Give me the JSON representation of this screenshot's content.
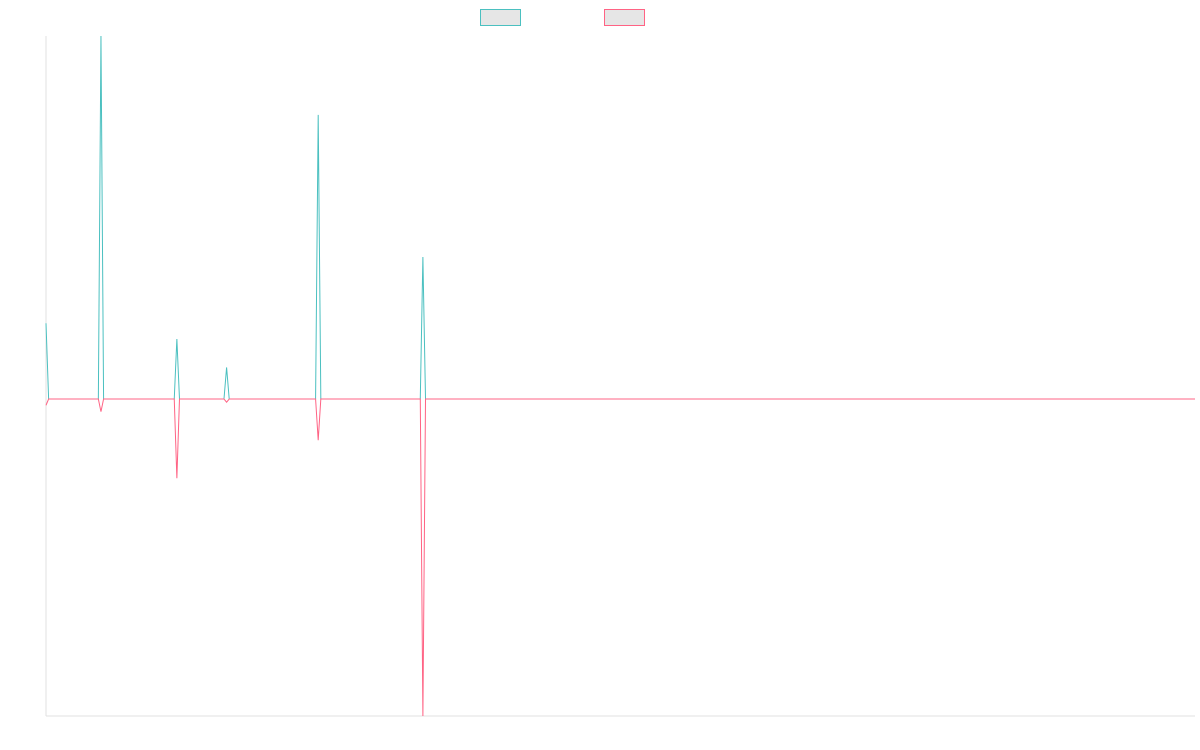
{
  "chart_data": {
    "type": "line",
    "title": "",
    "xlabel": "",
    "ylabel": "",
    "x_count": 440,
    "ylim": [
      -1,
      1.15
    ],
    "grid": false,
    "legend_placement": "top-center",
    "series": [
      {
        "color": "#4bc0c0",
        "fill": "#e6e6e6",
        "points": [
          [
            0,
            0.24
          ],
          [
            1,
            0
          ],
          [
            20,
            0
          ],
          [
            21,
            1.15
          ],
          [
            22,
            0
          ],
          [
            49,
            0
          ],
          [
            50,
            0.19
          ],
          [
            51,
            0
          ],
          [
            68,
            0
          ],
          [
            69,
            0.1
          ],
          [
            70,
            0
          ],
          [
            103,
            0
          ],
          [
            104,
            0.9
          ],
          [
            105,
            0
          ],
          [
            143,
            0
          ],
          [
            144,
            0.45
          ],
          [
            145,
            0
          ],
          [
            439,
            0
          ]
        ]
      },
      {
        "color": "#ff6384",
        "fill": "#e6e6e6",
        "points": [
          [
            0,
            -0.02
          ],
          [
            1,
            0
          ],
          [
            20,
            0
          ],
          [
            21,
            -0.04
          ],
          [
            22,
            0
          ],
          [
            49,
            0
          ],
          [
            50,
            -0.25
          ],
          [
            51,
            0
          ],
          [
            68,
            0
          ],
          [
            69,
            -0.01
          ],
          [
            70,
            0
          ],
          [
            103,
            0
          ],
          [
            104,
            -0.13
          ],
          [
            105,
            0
          ],
          [
            143,
            0
          ],
          [
            144,
            -1.0
          ],
          [
            145,
            0
          ],
          [
            439,
            0
          ]
        ]
      }
    ],
    "axis_color": "#e0e0e0"
  }
}
